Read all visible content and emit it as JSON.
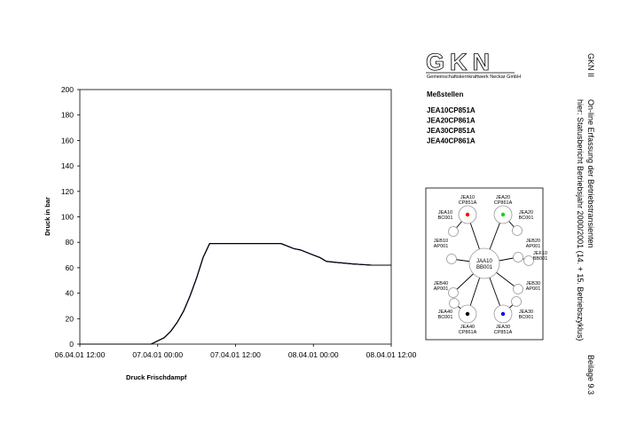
{
  "header": {
    "logo": "GKN",
    "company": "Gemeinschaftskernkraftwerk Neckar GmbH"
  },
  "side": {
    "plant": "GKN II",
    "title": "On-line Erfassung der Betriebstransienten",
    "subtitle": "hier: Statusbericht Betriebsjahr 2000/2001 (14. + 15. Betriebszyklus)",
    "attachment": "Beilage 9.3"
  },
  "chart_data": {
    "type": "line",
    "xlabel": "Druck Frischdampf",
    "ylabel": "Druck in bar",
    "legend_title": "Meßstellen",
    "x": [
      "06.04.01 12:00",
      "06.04.01 23:00",
      "07.04.01 01:00",
      "07.04.01 02:00",
      "07.04.01 03:00",
      "07.04.01 04:00",
      "07.04.01 05:00",
      "07.04.01 06:00",
      "07.04.01 07:00",
      "07.04.01 08:00",
      "07.04.01 12:00",
      "07.04.01 16:00",
      "07.04.01 19:00",
      "07.04.01 21:00",
      "07.04.01 22:00",
      "08.04.01 00:00",
      "08.04.01 01:00",
      "08.04.01 02:00",
      "08.04.01 04:00",
      "08.04.01 06:00",
      "08.04.01 09:00",
      "08.04.01 12:00"
    ],
    "series": [
      {
        "name": "JEA10CP851A",
        "color": "#ff0000",
        "values": [
          0,
          0,
          5,
          10,
          17,
          26,
          38,
          52,
          68,
          79,
          79,
          79,
          79,
          75,
          74,
          70,
          68,
          65,
          64,
          63,
          62,
          62
        ]
      },
      {
        "name": "JEA20CP861A",
        "color": "#00dd00",
        "values": [
          0,
          0,
          5,
          10,
          17,
          26,
          38,
          52,
          68,
          79,
          79,
          79,
          79,
          75,
          74,
          70,
          68,
          65,
          64,
          63,
          62,
          62
        ]
      },
      {
        "name": "JEA30CP851A",
        "color": "#0000ff",
        "values": [
          0,
          0,
          5,
          10,
          17,
          26,
          38,
          52,
          68,
          79,
          79,
          79,
          79,
          75,
          74,
          70,
          68,
          65,
          64,
          63,
          62,
          62
        ]
      },
      {
        "name": "JEA40CP861A",
        "color": "#000000",
        "values": [
          0,
          0,
          5,
          10,
          17,
          26,
          38,
          52,
          68,
          79,
          79,
          79,
          79,
          75,
          74,
          70,
          68,
          65,
          64,
          63,
          62,
          62
        ]
      }
    ],
    "xlim": [
      "06.04.01 12:00",
      "08.04.01 12:00"
    ],
    "xticks": [
      "06.04.01 12:00",
      "07.04.01 00:00",
      "07.04.01 12:00",
      "08.04.01 00:00",
      "08.04.01 12:00"
    ],
    "ylim": [
      0,
      200
    ],
    "yticks": [
      0,
      20,
      40,
      60,
      80,
      100,
      120,
      140,
      160,
      180,
      200
    ],
    "grid": false
  },
  "diagram": {
    "center": [
      "JAA10",
      "BB001"
    ],
    "nodes": [
      {
        "label": [
          "JEA10",
          "CP851A"
        ],
        "color": "#ff0000"
      },
      {
        "label": [
          "JEA20",
          "CP861A"
        ],
        "color": "#00dd00"
      },
      {
        "label": [
          "JEA40",
          "CP861A"
        ],
        "color": "#000000"
      },
      {
        "label": [
          "JEA30",
          "CP851A"
        ],
        "color": "#0000ff"
      },
      {
        "label": [
          "JEA10",
          "BC001"
        ],
        "color": "#000000"
      },
      {
        "label": [
          "JEB10",
          "AP001"
        ],
        "color": "#000000"
      },
      {
        "label": [
          "JEB40",
          "AP001"
        ],
        "color": "#000000"
      },
      {
        "label": [
          "JEA40",
          "BC001"
        ],
        "color": "#000000"
      },
      {
        "label": [
          "JEA20",
          "BC001"
        ],
        "color": "#000000"
      },
      {
        "label": [
          "JEB20",
          "AP001"
        ],
        "color": "#000000"
      },
      {
        "label": [
          "JEF10",
          "BB001"
        ],
        "color": "#000000"
      },
      {
        "label": [
          "JEB30",
          "AP001"
        ],
        "color": "#000000"
      },
      {
        "label": [
          "JEA30",
          "BC001"
        ],
        "color": "#000000"
      }
    ]
  }
}
